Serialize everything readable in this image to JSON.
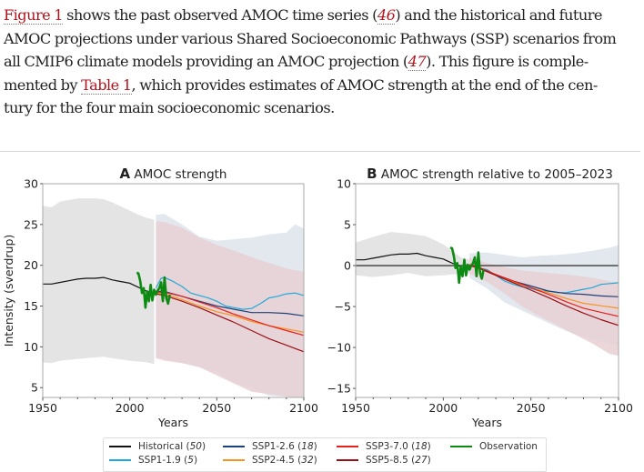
{
  "paragraph": {
    "lines": [
      [
        {
          "t": "Figure 1",
          "k": "link"
        },
        {
          "t": " shows the past observed AMOC time series ("
        },
        {
          "t": "46",
          "k": "ref"
        },
        {
          "t": ") and the historical and future"
        }
      ],
      [
        {
          "t": "AMOC projections under various Shared Socioeconomic Pathways (SSP) scenarios from"
        }
      ],
      [
        {
          "t": "all CMIP6 climate models providing an AMOC projection ("
        },
        {
          "t": "47",
          "k": "ref"
        },
        {
          "t": "). This figure is comple-"
        }
      ],
      [
        {
          "t": "mented by "
        },
        {
          "t": "Table 1",
          "k": "link"
        },
        {
          "t": ", which provides estimates of AMOC strength at the end of the cen-"
        }
      ],
      [
        {
          "t": "tury for the four main socioeconomic scenarios."
        }
      ]
    ]
  },
  "colors": {
    "historical": "#111111",
    "ssp119": "#1fa9d8",
    "ssp126": "#1d3f7a",
    "ssp245": "#f7931e",
    "ssp370": "#e8201e",
    "ssp585": "#9a1016",
    "observation": "#0d8a12",
    "hist_band": "#e4e4e4",
    "ssp_low_band": "#e3e8ee",
    "ssp_high_band": "#e8d0d4",
    "zero_line": "#555555"
  },
  "legend": {
    "items": [
      {
        "key": "historical",
        "label": "Historical",
        "count": "50"
      },
      {
        "key": "ssp119",
        "label": "SSP1-1.9",
        "count": "5"
      },
      {
        "key": "ssp126",
        "label": "SSP1-2.6",
        "count": "18"
      },
      {
        "key": "ssp245",
        "label": "SSP2-4.5",
        "count": "32"
      },
      {
        "key": "ssp370",
        "label": "SSP3-7.0",
        "count": "18"
      },
      {
        "key": "ssp585",
        "label": "SSP5-8.5",
        "count": "27"
      },
      {
        "key": "observation",
        "label": "Observation",
        "count": ""
      }
    ]
  },
  "chart_data": [
    {
      "type": "line",
      "panel_letter": "A",
      "title": "AMOC strength",
      "xlabel": "Years",
      "ylabel": "Intensity (sverdrup)",
      "xlim": [
        1950,
        2100
      ],
      "ylim": [
        3.8,
        30
      ],
      "xticks": [
        1950,
        2000,
        2050,
        2100
      ],
      "yticks": [
        5,
        10,
        15,
        20,
        25,
        30
      ],
      "grid": false,
      "legend_position": "bottom-center",
      "bands": [
        {
          "name": "Historical range",
          "color_key": "hist_band",
          "x": [
            1950,
            1955,
            1960,
            1970,
            1980,
            1985,
            1990,
            2000,
            2005,
            2010,
            2014
          ],
          "upper": [
            27.3,
            27.1,
            27.8,
            28.2,
            28.2,
            28.1,
            27.7,
            26.7,
            26.2,
            25.8,
            25.6
          ],
          "lower": [
            8.1,
            8.0,
            8.3,
            8.5,
            8.7,
            8.8,
            8.6,
            8.3,
            8.2,
            8.1,
            7.9
          ]
        },
        {
          "name": "SSP low-emission range",
          "color_key": "ssp_low_band",
          "x": [
            2015,
            2020,
            2030,
            2040,
            2050,
            2060,
            2070,
            2080,
            2090,
            2095,
            2100
          ],
          "upper": [
            26.2,
            26.3,
            25.0,
            23.5,
            23.0,
            23.2,
            23.4,
            23.8,
            24.0,
            25.0,
            24.5
          ],
          "lower": [
            8.8,
            8.5,
            8.0,
            7.5,
            7.0,
            5.5,
            5.0,
            4.0,
            3.9,
            3.8,
            3.8
          ]
        },
        {
          "name": "SSP high-emission range",
          "color_key": "ssp_high_band",
          "x": [
            2015,
            2020,
            2030,
            2040,
            2050,
            2060,
            2070,
            2080,
            2090,
            2100
          ],
          "upper": [
            25.4,
            25.3,
            24.6,
            23.4,
            22.5,
            21.8,
            21.0,
            20.3,
            19.6,
            19.2
          ],
          "lower": [
            8.6,
            8.3,
            8.0,
            7.5,
            6.5,
            5.5,
            4.5,
            4.2,
            3.9,
            3.8
          ]
        }
      ],
      "series": [
        {
          "name": "Historical (50)",
          "color_key": "historical",
          "x": [
            1950,
            1955,
            1960,
            1965,
            1970,
            1975,
            1980,
            1985,
            1990,
            1995,
            2000,
            2005,
            2010,
            2014
          ],
          "y": [
            17.7,
            17.7,
            17.9,
            18.1,
            18.3,
            18.4,
            18.4,
            18.5,
            18.2,
            18.0,
            17.8,
            17.3,
            16.8,
            16.5
          ]
        },
        {
          "name": "SSP1-1.9 (5)",
          "color_key": "ssp119",
          "x": [
            2015,
            2018,
            2020,
            2025,
            2030,
            2035,
            2040,
            2045,
            2050,
            2055,
            2060,
            2065,
            2070,
            2075,
            2080,
            2085,
            2090,
            2095,
            2100
          ],
          "y": [
            17.2,
            18.4,
            18.5,
            18.0,
            17.4,
            16.6,
            16.3,
            16.0,
            15.6,
            15.0,
            14.8,
            14.6,
            14.7,
            15.3,
            16.0,
            16.2,
            16.5,
            16.6,
            16.3
          ]
        },
        {
          "name": "SSP1-2.6 (18)",
          "color_key": "ssp126",
          "x": [
            2015,
            2020,
            2030,
            2040,
            2050,
            2060,
            2070,
            2080,
            2090,
            2100
          ],
          "y": [
            16.8,
            16.8,
            16.2,
            15.6,
            15.0,
            14.6,
            14.2,
            14.2,
            14.1,
            13.8
          ]
        },
        {
          "name": "SSP2-4.5 (32)",
          "color_key": "ssp245",
          "x": [
            2015,
            2020,
            2030,
            2040,
            2050,
            2060,
            2070,
            2080,
            2090,
            2100
          ],
          "y": [
            16.6,
            16.5,
            15.8,
            15.0,
            14.3,
            13.8,
            13.1,
            12.6,
            12.2,
            11.8
          ]
        },
        {
          "name": "SSP3-7.0 (18)",
          "color_key": "ssp370",
          "x": [
            2015,
            2020,
            2030,
            2040,
            2050,
            2060,
            2070,
            2080,
            2090,
            2100
          ],
          "y": [
            16.7,
            16.7,
            16.2,
            15.5,
            14.8,
            14.0,
            13.3,
            12.6,
            12.0,
            11.4
          ]
        },
        {
          "name": "SSP5-8.5 (27)",
          "color_key": "ssp585",
          "x": [
            2015,
            2020,
            2030,
            2040,
            2050,
            2060,
            2070,
            2080,
            2090,
            2100
          ],
          "y": [
            16.5,
            16.3,
            15.6,
            14.8,
            13.9,
            13.0,
            12.0,
            11.0,
            10.2,
            9.4
          ]
        },
        {
          "name": "Observation",
          "color_key": "observation",
          "x": [
            2004,
            2005,
            2006,
            2007,
            2008,
            2009,
            2010,
            2011,
            2012,
            2013,
            2014,
            2015,
            2016,
            2017,
            2018,
            2019,
            2020,
            2021,
            2022,
            2023
          ],
          "y": [
            19.1,
            19.0,
            18.1,
            16.6,
            17.2,
            14.8,
            16.8,
            15.6,
            17.6,
            15.7,
            17.0,
            16.4,
            16.9,
            17.2,
            17.9,
            15.6,
            18.5,
            16.0,
            15.3,
            16.4
          ]
        }
      ]
    },
    {
      "type": "line",
      "panel_letter": "B",
      "title": "AMOC strength relative to 2005–2023",
      "xlabel": "Years",
      "ylabel": "",
      "xlim": [
        1950,
        2100
      ],
      "ylim": [
        -16.1,
        10
      ],
      "xticks": [
        1950,
        2000,
        2050,
        2100
      ],
      "yticks": [
        -15,
        -10,
        -5,
        0,
        5,
        10
      ],
      "zero_line": true,
      "grid": false,
      "bands": [
        {
          "name": "Historical range",
          "color_key": "hist_band",
          "x": [
            1950,
            1960,
            1970,
            1980,
            1990,
            2000,
            2010,
            2020
          ],
          "upper": [
            2.8,
            3.5,
            4.1,
            3.9,
            3.6,
            2.6,
            1.0,
            0.5
          ],
          "lower": [
            -1.2,
            -1.4,
            -1.2,
            -0.9,
            -1.3,
            -1.2,
            -1.0,
            -1.0
          ]
        },
        {
          "name": "SSP low-emission range",
          "color_key": "ssp_low_band",
          "x": [
            2015,
            2025,
            2035,
            2045,
            2055,
            2065,
            2075,
            2085,
            2095,
            2100
          ],
          "upper": [
            1.5,
            1.6,
            1.3,
            1.0,
            1.2,
            1.3,
            1.5,
            1.8,
            2.2,
            2.5
          ],
          "lower": [
            -1.5,
            -2.8,
            -4.5,
            -5.5,
            -6.5,
            -7.5,
            -8.4,
            -9.0,
            -9.5,
            -9.8
          ]
        },
        {
          "name": "SSP high-emission range",
          "color_key": "ssp_high_band",
          "x": [
            2015,
            2025,
            2035,
            2045,
            2055,
            2065,
            2075,
            2085,
            2095,
            2100
          ],
          "upper": [
            1.0,
            0.3,
            -0.2,
            -0.6,
            -0.8,
            -1.0,
            -1.2,
            -1.5,
            -1.9,
            -2.0
          ],
          "lower": [
            -1.0,
            -2.0,
            -3.4,
            -5.0,
            -6.2,
            -7.3,
            -8.4,
            -9.5,
            -10.8,
            -11.0
          ]
        }
      ],
      "series": [
        {
          "name": "Historical (50)",
          "color_key": "historical",
          "x": [
            1950,
            1955,
            1960,
            1965,
            1970,
            1975,
            1980,
            1985,
            1990,
            1995,
            2000,
            2005,
            2010
          ],
          "y": [
            0.7,
            0.7,
            0.9,
            1.1,
            1.3,
            1.4,
            1.4,
            1.5,
            1.2,
            1.0,
            0.8,
            0.3,
            -0.1
          ]
        },
        {
          "name": "SSP1-1.9 (5)",
          "color_key": "ssp119",
          "x": [
            2015,
            2020,
            2025,
            2030,
            2035,
            2040,
            2045,
            2050,
            2055,
            2060,
            2065,
            2070,
            2075,
            2080,
            2085,
            2090,
            2095,
            2100
          ],
          "y": [
            0.1,
            -0.3,
            -0.5,
            -1.2,
            -1.9,
            -2.3,
            -2.6,
            -2.8,
            -3.1,
            -3.1,
            -3.3,
            -3.3,
            -3.1,
            -2.9,
            -2.7,
            -2.3,
            -2.2,
            -2.1
          ]
        },
        {
          "name": "SSP1-2.6 (18)",
          "color_key": "ssp126",
          "x": [
            2015,
            2020,
            2030,
            2040,
            2050,
            2060,
            2070,
            2080,
            2090,
            2100
          ],
          "y": [
            0.1,
            -0.2,
            -1.1,
            -1.9,
            -2.5,
            -3.1,
            -3.4,
            -3.5,
            -3.7,
            -3.8
          ]
        },
        {
          "name": "SSP2-4.5 (32)",
          "color_key": "ssp245",
          "x": [
            2015,
            2020,
            2030,
            2040,
            2050,
            2060,
            2070,
            2080,
            2090,
            2100
          ],
          "y": [
            0.1,
            -0.3,
            -1.1,
            -2.0,
            -2.7,
            -3.3,
            -4.0,
            -4.6,
            -4.9,
            -5.2
          ]
        },
        {
          "name": "SSP3-7.0 (18)",
          "color_key": "ssp370",
          "x": [
            2015,
            2020,
            2030,
            2040,
            2050,
            2060,
            2070,
            2080,
            2090,
            2100
          ],
          "y": [
            0.1,
            -0.2,
            -1.1,
            -1.9,
            -2.7,
            -3.5,
            -4.4,
            -5.2,
            -5.7,
            -6.2
          ]
        },
        {
          "name": "SSP5-8.5 (27)",
          "color_key": "ssp585",
          "x": [
            2015,
            2020,
            2030,
            2040,
            2050,
            2060,
            2070,
            2080,
            2090,
            2100
          ],
          "y": [
            0.0,
            -0.3,
            -1.2,
            -2.1,
            -3.0,
            -3.9,
            -4.9,
            -5.8,
            -6.6,
            -7.3
          ]
        },
        {
          "name": "Observation",
          "color_key": "observation",
          "x": [
            2004,
            2005,
            2006,
            2007,
            2008,
            2009,
            2010,
            2011,
            2012,
            2013,
            2014,
            2015,
            2016,
            2017,
            2018,
            2019,
            2020,
            2021,
            2022,
            2023
          ],
          "y": [
            2.2,
            2.1,
            1.2,
            -0.3,
            0.3,
            -2.1,
            -0.1,
            -1.3,
            0.7,
            -1.2,
            0.1,
            -0.5,
            0.0,
            0.3,
            1.0,
            -1.3,
            1.6,
            -0.9,
            -1.6,
            -0.5
          ]
        }
      ]
    }
  ]
}
